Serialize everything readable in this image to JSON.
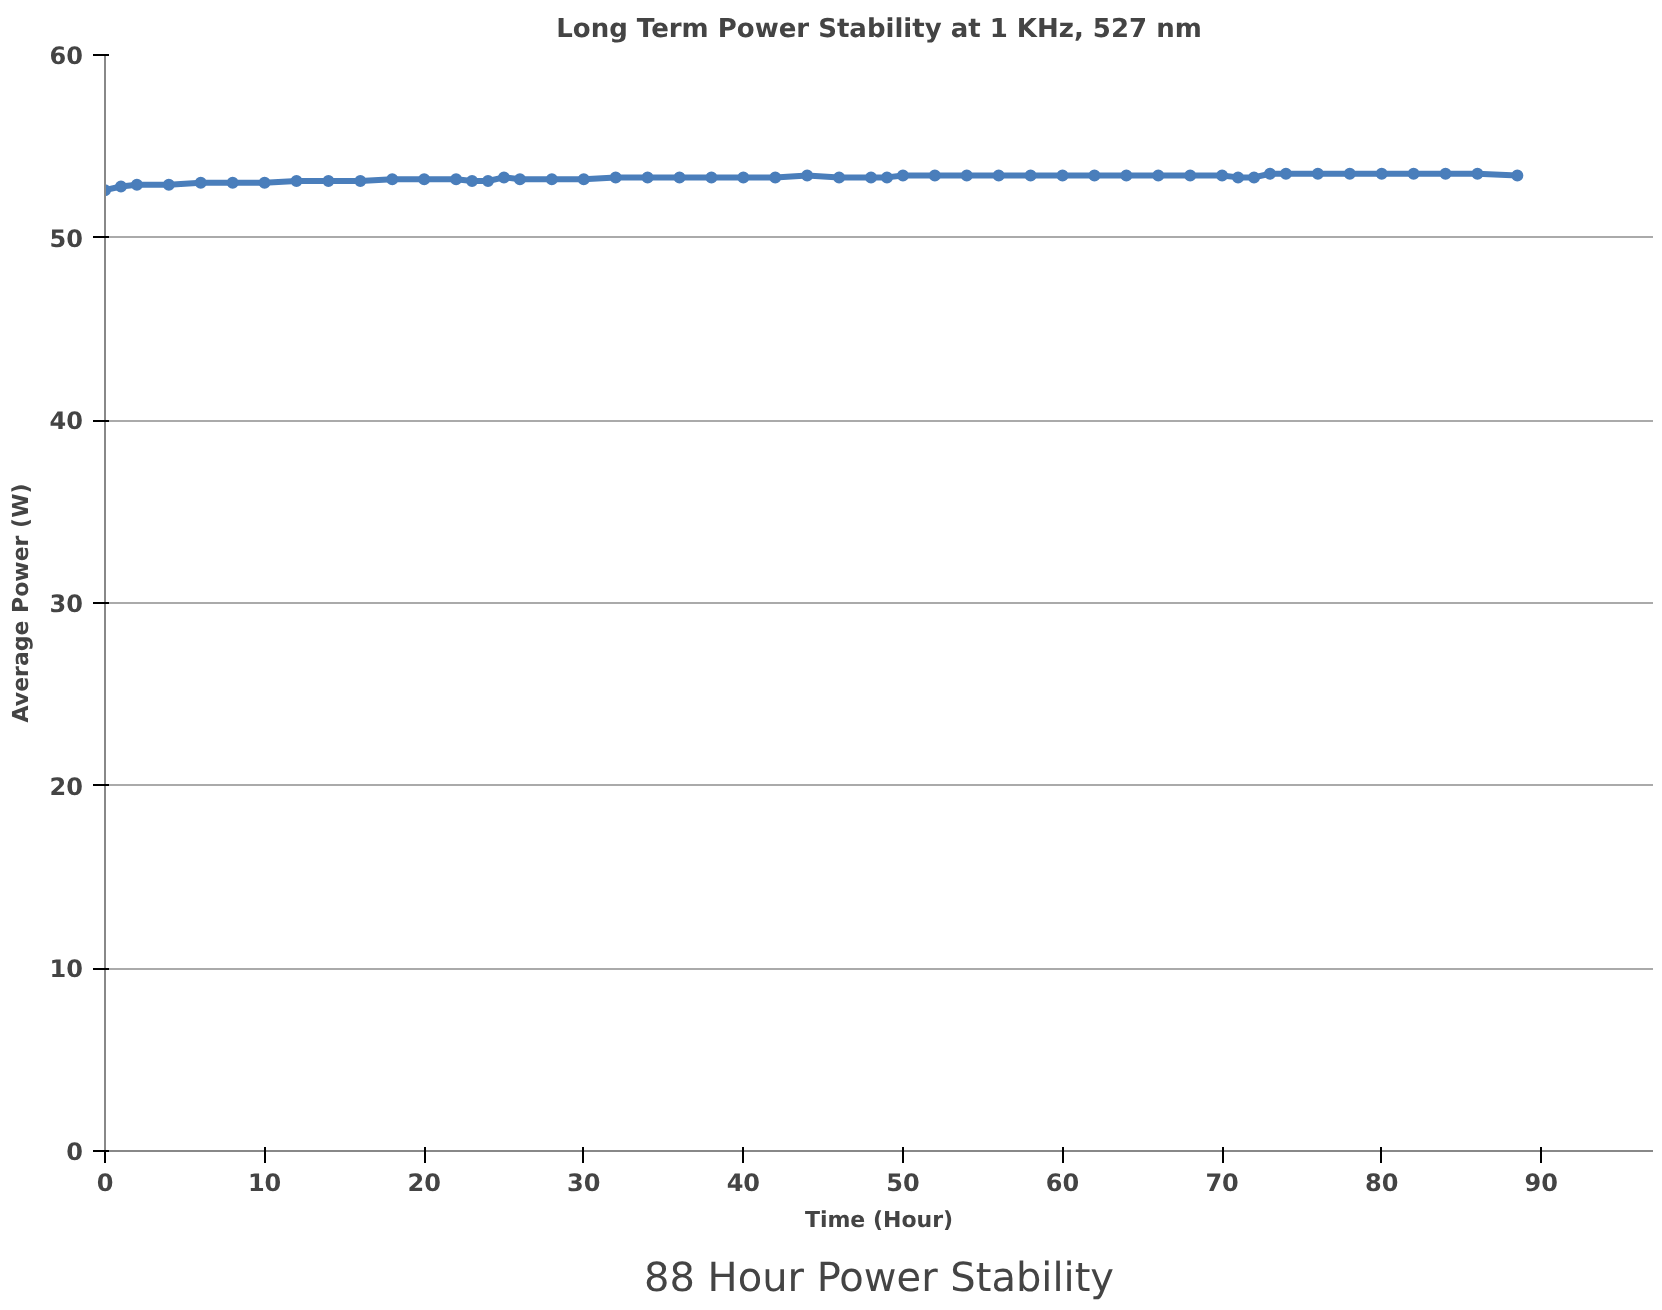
{
  "chart_data": {
    "type": "line",
    "title": "Long Term Power Stability at 1 KHz, 527 nm",
    "xlabel": "Time (Hour)",
    "ylabel": "Average Power (W)",
    "annotations": [
      "88 Hour Power Stability"
    ],
    "x": [
      0,
      1,
      2,
      4,
      6,
      8,
      10,
      12,
      14,
      16,
      18,
      20,
      22,
      23,
      24,
      25,
      26,
      28,
      30,
      32,
      34,
      36,
      38,
      40,
      42,
      44,
      46,
      48,
      49,
      50,
      52,
      54,
      56,
      58,
      60,
      62,
      64,
      66,
      68,
      70,
      71,
      72,
      73,
      74,
      76,
      78,
      80,
      82,
      84,
      86,
      88.5
    ],
    "series": [
      {
        "color": "#4a7ebb",
        "values": [
          52.6,
          52.8,
          52.9,
          52.9,
          53.0,
          53.0,
          53.0,
          53.1,
          53.1,
          53.1,
          53.2,
          53.2,
          53.2,
          53.1,
          53.1,
          53.3,
          53.2,
          53.2,
          53.2,
          53.3,
          53.3,
          53.3,
          53.3,
          53.3,
          53.3,
          53.4,
          53.3,
          53.3,
          53.3,
          53.4,
          53.4,
          53.4,
          53.4,
          53.4,
          53.4,
          53.4,
          53.4,
          53.4,
          53.4,
          53.4,
          53.3,
          53.3,
          53.5,
          53.5,
          53.5,
          53.5,
          53.5,
          53.5,
          53.5,
          53.5,
          53.4
        ]
      }
    ],
    "xlim": [
      0,
      97
    ],
    "xticks": [
      0,
      10,
      20,
      30,
      40,
      50,
      60,
      70,
      80,
      90
    ],
    "ylim": [
      0,
      60
    ],
    "yticks": [
      0,
      10,
      20,
      30,
      40,
      50,
      60
    ],
    "grid": "y",
    "marker": "circle",
    "line_style": "solid"
  }
}
